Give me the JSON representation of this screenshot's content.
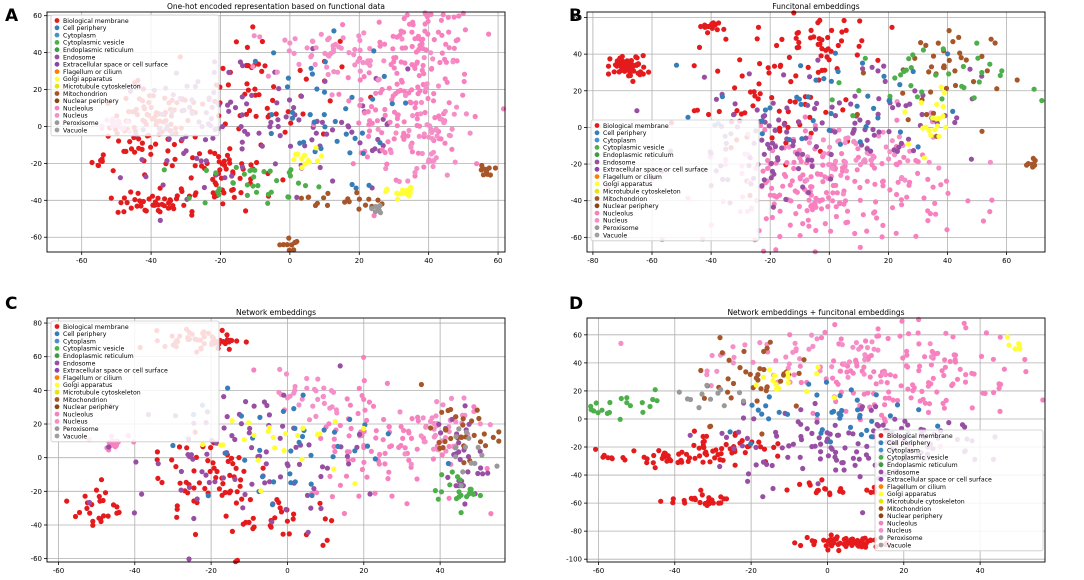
{
  "panel_letters": [
    "A",
    "B",
    "C",
    "D"
  ],
  "categories": [
    {
      "name": "Biological membrane",
      "color": "#e41a1c"
    },
    {
      "name": "Cell periphery",
      "color": "#377eb8"
    },
    {
      "name": "Cytoplasm",
      "color": "#4a90c8"
    },
    {
      "name": "Cytoplasmic vesicle",
      "color": "#4daf4a"
    },
    {
      "name": "Endoplasmic reticulum",
      "color": "#3d9a45"
    },
    {
      "name": "Endosome",
      "color": "#984ea3"
    },
    {
      "name": "Extracellular space or cell surface",
      "color": "#8e44ad"
    },
    {
      "name": "Flagellum or cilium",
      "color": "#ff7f00"
    },
    {
      "name": "Golgi apparatus",
      "color": "#ffff33"
    },
    {
      "name": "Microtubule cytoskeleton",
      "color": "#e6e600"
    },
    {
      "name": "Mitochondrion",
      "color": "#a65628"
    },
    {
      "name": "Nuclear periphery",
      "color": "#8b4513"
    },
    {
      "name": "Nucleolus",
      "color": "#f781bf"
    },
    {
      "name": "Nucleus",
      "color": "#f48fc8"
    },
    {
      "name": "Peroxisome",
      "color": "#999999"
    },
    {
      "name": "Vacuole",
      "color": "#a0a0a0"
    }
  ],
  "chart_data": [
    {
      "type": "scatter",
      "panel": "A",
      "title": "One-hot encoded representation based on functional data",
      "xlim": [
        -70,
        62
      ],
      "ylim": [
        -68,
        62
      ],
      "xticks": [
        -60,
        -40,
        -20,
        0,
        20,
        40,
        60
      ],
      "yticks": [
        -60,
        -40,
        -20,
        0,
        20,
        40,
        60
      ],
      "legend": "top-left",
      "grid": true,
      "clusters": [
        {
          "c": 0,
          "x": -40,
          "y": 0,
          "sx": 6,
          "sy": 10,
          "n": 90
        },
        {
          "c": 0,
          "x": -40,
          "y": -42,
          "sx": 5,
          "sy": 3,
          "n": 40
        },
        {
          "c": 0,
          "x": -20,
          "y": -25,
          "sx": 8,
          "sy": 10,
          "n": 60
        },
        {
          "c": 0,
          "x": -55,
          "y": -20,
          "sx": 1.5,
          "sy": 2,
          "n": 8
        },
        {
          "c": 0,
          "x": -10,
          "y": 20,
          "sx": 12,
          "sy": 15,
          "n": 60
        },
        {
          "c": 5,
          "x": -25,
          "y": 0,
          "sx": 12,
          "sy": 15,
          "n": 80
        },
        {
          "c": 5,
          "x": 10,
          "y": 0,
          "sx": 15,
          "sy": 20,
          "n": 50
        },
        {
          "c": 12,
          "x": 38,
          "y": 40,
          "sx": 8,
          "sy": 15,
          "n": 120
        },
        {
          "c": 12,
          "x": 30,
          "y": 0,
          "sx": 10,
          "sy": 12,
          "n": 80
        },
        {
          "c": 12,
          "x": -50,
          "y": 0,
          "sx": 2,
          "sy": 3,
          "n": 15
        },
        {
          "c": 13,
          "x": 15,
          "y": 40,
          "sx": 15,
          "sy": 8,
          "n": 60
        },
        {
          "c": 13,
          "x": 40,
          "y": -5,
          "sx": 5,
          "sy": 15,
          "n": 50
        },
        {
          "c": 3,
          "x": -10,
          "y": -30,
          "sx": 10,
          "sy": 6,
          "n": 35
        },
        {
          "c": 1,
          "x": 5,
          "y": 5,
          "sx": 12,
          "sy": 20,
          "n": 40
        },
        {
          "c": 10,
          "x": 57,
          "y": -24,
          "sx": 1,
          "sy": 1.5,
          "n": 10
        },
        {
          "c": 10,
          "x": 0,
          "y": -64,
          "sx": 1.5,
          "sy": 2,
          "n": 10
        },
        {
          "c": 10,
          "x": 15,
          "y": -40,
          "sx": 6,
          "sy": 3,
          "n": 20
        },
        {
          "c": 8,
          "x": 32,
          "y": -36,
          "sx": 2,
          "sy": 1.5,
          "n": 15
        },
        {
          "c": 14,
          "x": 25,
          "y": -45,
          "sx": 2,
          "sy": 2,
          "n": 10
        },
        {
          "c": 8,
          "x": 5,
          "y": -18,
          "sx": 3,
          "sy": 3,
          "n": 12
        }
      ]
    },
    {
      "type": "scatter",
      "panel": "B",
      "title": "Funcitonal embeddings",
      "xlim": [
        -82,
        73
      ],
      "ylim": [
        -68,
        63
      ],
      "xticks": [
        -80,
        -60,
        -40,
        -20,
        0,
        20,
        40,
        60
      ],
      "yticks": [
        -60,
        -40,
        -20,
        0,
        20,
        40,
        60
      ],
      "legend": "center-left",
      "grid": true,
      "clusters": [
        {
          "c": 0,
          "x": -68,
          "y": 33,
          "sx": 3,
          "sy": 3,
          "n": 60
        },
        {
          "c": 0,
          "x": -40,
          "y": 55,
          "sx": 2,
          "sy": 1.5,
          "n": 15
        },
        {
          "c": 0,
          "x": -5,
          "y": 45,
          "sx": 10,
          "sy": 8,
          "n": 50
        },
        {
          "c": 0,
          "x": -20,
          "y": 10,
          "sx": 15,
          "sy": 15,
          "n": 60
        },
        {
          "c": 12,
          "x": 0,
          "y": -35,
          "sx": 20,
          "sy": 15,
          "n": 220
        },
        {
          "c": 13,
          "x": 10,
          "y": -15,
          "sx": 15,
          "sy": 10,
          "n": 60
        },
        {
          "c": 5,
          "x": -20,
          "y": -10,
          "sx": 15,
          "sy": 15,
          "n": 90
        },
        {
          "c": 5,
          "x": 20,
          "y": 10,
          "sx": 15,
          "sy": 15,
          "n": 50
        },
        {
          "c": 10,
          "x": 35,
          "y": 30,
          "sx": 10,
          "sy": 15,
          "n": 40
        },
        {
          "c": 10,
          "x": 68,
          "y": -20,
          "sx": 1.5,
          "sy": 1.5,
          "n": 8
        },
        {
          "c": 3,
          "x": 30,
          "y": 25,
          "sx": 15,
          "sy": 10,
          "n": 35
        },
        {
          "c": 1,
          "x": 0,
          "y": 10,
          "sx": 20,
          "sy": 15,
          "n": 40
        },
        {
          "c": 8,
          "x": 35,
          "y": 5,
          "sx": 5,
          "sy": 10,
          "n": 20
        }
      ]
    },
    {
      "type": "scatter",
      "panel": "C",
      "title": "Network embeddings",
      "xlim": [
        -63,
        57
      ],
      "ylim": [
        -62,
        83
      ],
      "xticks": [
        -60,
        -40,
        -20,
        0,
        20,
        40
      ],
      "yticks": [
        -60,
        -40,
        -20,
        0,
        20,
        40,
        60,
        80
      ],
      "legend": "top-left",
      "grid": true,
      "clusters": [
        {
          "c": 0,
          "x": -22,
          "y": 70,
          "sx": 5,
          "sy": 3,
          "n": 50
        },
        {
          "c": 0,
          "x": -50,
          "y": -30,
          "sx": 3,
          "sy": 8,
          "n": 25
        },
        {
          "c": 0,
          "x": -20,
          "y": -10,
          "sx": 8,
          "sy": 15,
          "n": 60
        },
        {
          "c": 0,
          "x": 0,
          "y": -40,
          "sx": 8,
          "sy": 10,
          "n": 30
        },
        {
          "c": 12,
          "x": 25,
          "y": 10,
          "sx": 10,
          "sy": 20,
          "n": 100
        },
        {
          "c": 12,
          "x": -45,
          "y": 10,
          "sx": 3,
          "sy": 2,
          "n": 15
        },
        {
          "c": 13,
          "x": 5,
          "y": 35,
          "sx": 5,
          "sy": 8,
          "n": 30
        },
        {
          "c": 13,
          "x": 40,
          "y": 20,
          "sx": 5,
          "sy": 10,
          "n": 40
        },
        {
          "c": 5,
          "x": -10,
          "y": 0,
          "sx": 15,
          "sy": 20,
          "n": 90
        },
        {
          "c": 5,
          "x": 45,
          "y": 0,
          "sx": 3,
          "sy": 15,
          "n": 30
        },
        {
          "c": 10,
          "x": 45,
          "y": 15,
          "sx": 5,
          "sy": 8,
          "n": 30
        },
        {
          "c": 3,
          "x": 45,
          "y": -20,
          "sx": 3,
          "sy": 5,
          "n": 20
        },
        {
          "c": 1,
          "x": 0,
          "y": 5,
          "sx": 15,
          "sy": 20,
          "n": 40
        },
        {
          "c": 8,
          "x": -5,
          "y": 10,
          "sx": 10,
          "sy": 10,
          "n": 25
        },
        {
          "c": 14,
          "x": 45,
          "y": 5,
          "sx": 3,
          "sy": 10,
          "n": 15
        }
      ]
    },
    {
      "type": "scatter",
      "panel": "D",
      "title": "Network embeddings + funcitonal embeddings",
      "xlim": [
        -63,
        57
      ],
      "ylim": [
        -102,
        72
      ],
      "xticks": [
        -60,
        -40,
        -20,
        0,
        20,
        40
      ],
      "yticks": [
        -100,
        -80,
        -60,
        -40,
        -20,
        0,
        20,
        40,
        60
      ],
      "legend": "bottom-right",
      "grid": true,
      "clusters": [
        {
          "c": 0,
          "x": 5,
          "y": -88,
          "sx": 6,
          "sy": 2.5,
          "n": 60
        },
        {
          "c": 0,
          "x": -35,
          "y": -58,
          "sx": 5,
          "sy": 2,
          "n": 25
        },
        {
          "c": 0,
          "x": -40,
          "y": -28,
          "sx": 10,
          "sy": 3,
          "n": 50
        },
        {
          "c": 0,
          "x": -25,
          "y": -18,
          "sx": 5,
          "sy": 5,
          "n": 30
        },
        {
          "c": 0,
          "x": 0,
          "y": -50,
          "sx": 8,
          "sy": 3,
          "n": 20
        },
        {
          "c": 12,
          "x": 20,
          "y": 35,
          "sx": 15,
          "sy": 18,
          "n": 160
        },
        {
          "c": 13,
          "x": -10,
          "y": 45,
          "sx": 15,
          "sy": 10,
          "n": 50
        },
        {
          "c": 5,
          "x": 0,
          "y": -20,
          "sx": 15,
          "sy": 15,
          "n": 100
        },
        {
          "c": 5,
          "x": 25,
          "y": -15,
          "sx": 8,
          "sy": 10,
          "n": 40
        },
        {
          "c": 10,
          "x": -20,
          "y": 30,
          "sx": 8,
          "sy": 15,
          "n": 40
        },
        {
          "c": 3,
          "x": -50,
          "y": 10,
          "sx": 6,
          "sy": 4,
          "n": 20
        },
        {
          "c": 1,
          "x": 5,
          "y": 0,
          "sx": 15,
          "sy": 10,
          "n": 40
        },
        {
          "c": 8,
          "x": -10,
          "y": 25,
          "sx": 8,
          "sy": 8,
          "n": 15
        },
        {
          "c": 8,
          "x": 48,
          "y": 52,
          "sx": 2,
          "sy": 2,
          "n": 6
        },
        {
          "c": 14,
          "x": -30,
          "y": 15,
          "sx": 5,
          "sy": 5,
          "n": 12
        }
      ]
    }
  ]
}
